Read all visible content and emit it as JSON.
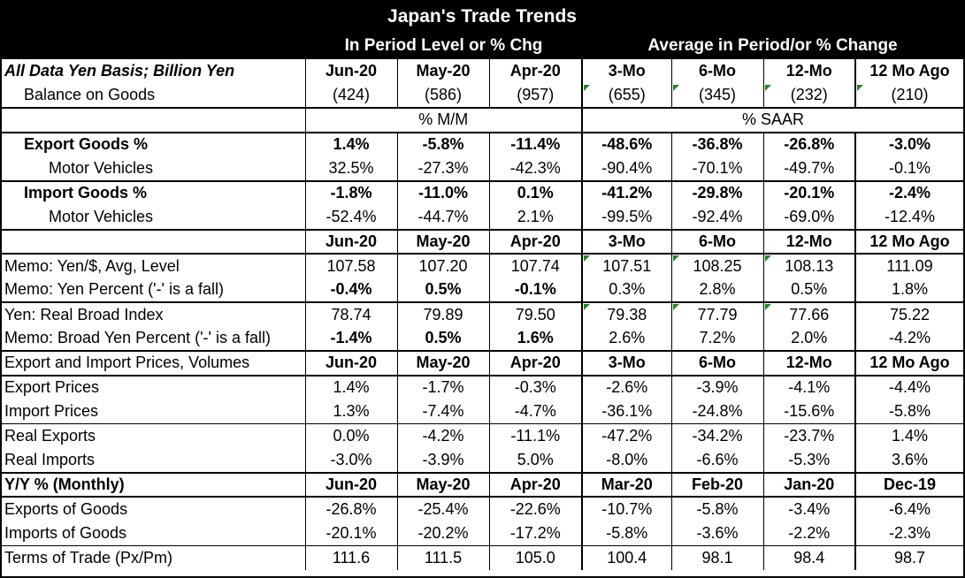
{
  "title": "Japan's Trade Trends",
  "subheads": {
    "left": "In Period Level or % Chg",
    "right": "Average in Period/or % Change"
  },
  "rows": [
    {
      "label": "All Data Yen Basis; Billion Yen",
      "vals": [
        "Jun-20",
        "May-20",
        "Apr-20",
        "3-Mo",
        "6-Mo",
        "12-Mo",
        "12 Mo Ago"
      ]
    },
    {
      "label": "Balance on Goods",
      "vals": [
        "(424)",
        "(586)",
        "(957)",
        "(655)",
        "(345)",
        "(232)",
        "(210)"
      ]
    },
    {
      "label": "",
      "vals": [
        "% M/M",
        "% SAAR"
      ]
    },
    {
      "label": "Export Goods %",
      "vals": [
        "1.4%",
        "-5.8%",
        "-11.4%",
        "-48.6%",
        "-36.8%",
        "-26.8%",
        "-3.0%"
      ]
    },
    {
      "label": "Motor Vehicles",
      "vals": [
        "32.5%",
        "-27.3%",
        "-42.3%",
        "-90.4%",
        "-70.1%",
        "-49.7%",
        "-0.1%"
      ]
    },
    {
      "label": "Import Goods %",
      "vals": [
        "-1.8%",
        "-11.0%",
        "0.1%",
        "-41.2%",
        "-29.8%",
        "-20.1%",
        "-2.4%"
      ]
    },
    {
      "label": "Motor Vehicles",
      "vals": [
        "-52.4%",
        "-44.7%",
        "2.1%",
        "-99.5%",
        "-92.4%",
        "-69.0%",
        "-12.4%"
      ]
    },
    {
      "label": "",
      "vals": [
        "Jun-20",
        "May-20",
        "Apr-20",
        "3-Mo",
        "6-Mo",
        "12-Mo",
        "12 Mo Ago"
      ]
    },
    {
      "label": "Memo: Yen/$, Avg, Level",
      "vals": [
        "107.58",
        "107.20",
        "107.74",
        "107.51",
        "108.25",
        "108.13",
        "111.09"
      ]
    },
    {
      "label": "Memo: Yen Percent ('-' is a fall)",
      "vals": [
        "-0.4%",
        "0.5%",
        "-0.1%",
        "0.3%",
        "2.8%",
        "0.5%",
        "1.8%"
      ]
    },
    {
      "label": "Yen: Real Broad Index",
      "vals": [
        "78.74",
        "79.89",
        "79.50",
        "79.38",
        "77.79",
        "77.66",
        "75.22"
      ]
    },
    {
      "label": "Memo: Broad Yen Percent ('-' is a fall)",
      "vals": [
        "-1.4%",
        "0.5%",
        "1.6%",
        "2.6%",
        "7.2%",
        "2.0%",
        "-4.2%"
      ]
    },
    {
      "label": "Export and Import Prices, Volumes",
      "vals": [
        "Jun-20",
        "May-20",
        "Apr-20",
        "3-Mo",
        "6-Mo",
        "12-Mo",
        "12 Mo Ago"
      ]
    },
    {
      "label": "Export Prices",
      "vals": [
        "1.4%",
        "-1.7%",
        "-0.3%",
        "-2.6%",
        "-3.9%",
        "-4.1%",
        "-4.4%"
      ]
    },
    {
      "label": "Import Prices",
      "vals": [
        "1.3%",
        "-7.4%",
        "-4.7%",
        "-36.1%",
        "-24.8%",
        "-15.6%",
        "-5.8%"
      ]
    },
    {
      "label": "Real Exports",
      "vals": [
        "0.0%",
        "-4.2%",
        "-11.1%",
        "-47.2%",
        "-34.2%",
        "-23.7%",
        "1.4%"
      ]
    },
    {
      "label": "Real Imports",
      "vals": [
        "-3.0%",
        "-3.9%",
        "5.0%",
        "-8.0%",
        "-6.6%",
        "-5.3%",
        "3.6%"
      ]
    },
    {
      "label": "Y/Y % (Monthly)",
      "vals": [
        "Jun-20",
        "May-20",
        "Apr-20",
        "Mar-20",
        "Feb-20",
        "Jan-20",
        "Dec-19"
      ]
    },
    {
      "label": "Exports of Goods",
      "vals": [
        "-26.8%",
        "-25.4%",
        "-22.6%",
        "-10.7%",
        "-5.8%",
        "-3.4%",
        "-6.4%"
      ]
    },
    {
      "label": "Imports of Goods",
      "vals": [
        "-20.1%",
        "-20.2%",
        "-17.2%",
        "-5.8%",
        "-3.6%",
        "-2.2%",
        "-2.3%"
      ]
    },
    {
      "label": "Terms of Trade (Px/Pm)",
      "vals": [
        "111.6",
        "111.5",
        "105.0",
        "100.4",
        "98.1",
        "98.4",
        "98.7"
      ]
    }
  ]
}
